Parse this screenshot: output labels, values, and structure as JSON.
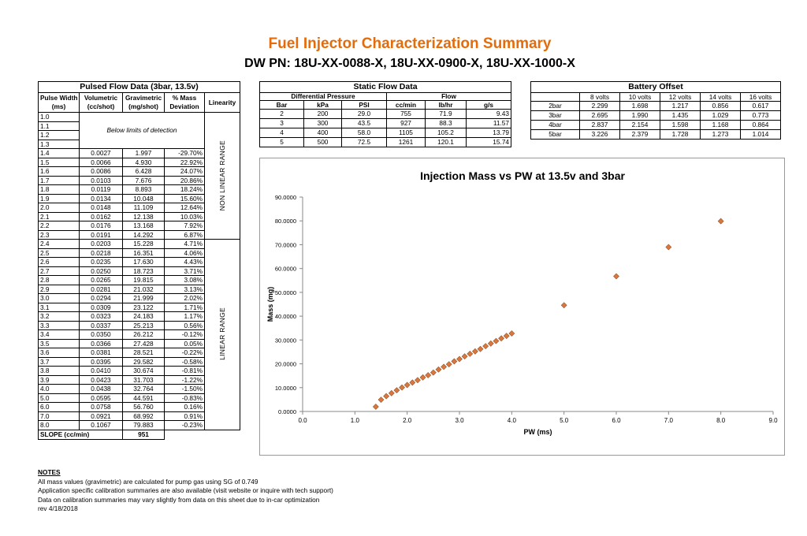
{
  "header": {
    "title": "Fuel Injector Characterization Summary",
    "subtitle": "DW PN: 18U-XX-0088-X, 18U-XX-0900-X, 18U-XX-1000-X"
  },
  "pulsed_table": {
    "title": "Pulsed Flow Data (3bar, 13.5v)",
    "columns": [
      [
        "Pulse Width",
        "(ms)"
      ],
      [
        "Volumetric",
        "(cc/shot)"
      ],
      [
        "Gravimetric",
        "(mg/shot)"
      ],
      [
        "% Mass",
        "Deviation"
      ],
      [
        "Linearity"
      ]
    ],
    "below_limit_note": "Below limits of detection",
    "nonlinear_label": "NON LINEAR RANGE",
    "linear_label": "LINEAR RANGE",
    "rows": [
      [
        "1.0"
      ],
      [
        "1.1"
      ],
      [
        "1.2"
      ],
      [
        "1.3"
      ],
      [
        "1.4",
        "0.0027",
        "1.997",
        "-29.70%"
      ],
      [
        "1.5",
        "0.0066",
        "4.930",
        "22.92%"
      ],
      [
        "1.6",
        "0.0086",
        "6.428",
        "24.07%"
      ],
      [
        "1.7",
        "0.0103",
        "7.676",
        "20.86%"
      ],
      [
        "1.8",
        "0.0119",
        "8.893",
        "18.24%"
      ],
      [
        "1.9",
        "0.0134",
        "10.048",
        "15.60%"
      ],
      [
        "2.0",
        "0.0148",
        "11.109",
        "12.64%"
      ],
      [
        "2.1",
        "0.0162",
        "12.138",
        "10.03%"
      ],
      [
        "2.2",
        "0.0176",
        "13.168",
        "7.92%"
      ],
      [
        "2.3",
        "0.0191",
        "14.292",
        "6.87%"
      ],
      [
        "2.4",
        "0.0203",
        "15.228",
        "4.71%"
      ],
      [
        "2.5",
        "0.0218",
        "16.351",
        "4.06%"
      ],
      [
        "2.6",
        "0.0235",
        "17.630",
        "4.43%"
      ],
      [
        "2.7",
        "0.0250",
        "18.723",
        "3.71%"
      ],
      [
        "2.8",
        "0.0265",
        "19.815",
        "3.08%"
      ],
      [
        "2.9",
        "0.0281",
        "21.032",
        "3.13%"
      ],
      [
        "3.0",
        "0.0294",
        "21.999",
        "2.02%"
      ],
      [
        "3.1",
        "0.0309",
        "23.122",
        "1.71%"
      ],
      [
        "3.2",
        "0.0323",
        "24.183",
        "1.17%"
      ],
      [
        "3.3",
        "0.0337",
        "25.213",
        "0.56%"
      ],
      [
        "3.4",
        "0.0350",
        "26.212",
        "-0.12%"
      ],
      [
        "3.5",
        "0.0366",
        "27.428",
        "0.05%"
      ],
      [
        "3.6",
        "0.0381",
        "28.521",
        "-0.22%"
      ],
      [
        "3.7",
        "0.0395",
        "29.582",
        "-0.58%"
      ],
      [
        "3.8",
        "0.0410",
        "30.674",
        "-0.81%"
      ],
      [
        "3.9",
        "0.0423",
        "31.703",
        "-1.22%"
      ],
      [
        "4.0",
        "0.0438",
        "32.764",
        "-1.50%"
      ],
      [
        "5.0",
        "0.0595",
        "44.591",
        "-0.83%"
      ],
      [
        "6.0",
        "0.0758",
        "56.760",
        "0.16%"
      ],
      [
        "7.0",
        "0.0921",
        "68.992",
        "0.91%"
      ],
      [
        "8.0",
        "0.1067",
        "79.883",
        "-0.23%"
      ]
    ],
    "slope_label": "SLOPE (cc/min)",
    "slope": "951"
  },
  "static_table": {
    "title": "Static Flow Data",
    "group_headers": [
      "Differential Pressure",
      "Flow"
    ],
    "columns": [
      "Bar",
      "kPa",
      "PSI",
      "cc/min",
      "lb/hr",
      "g/s"
    ],
    "rows": [
      [
        "2",
        "200",
        "29.0",
        "755",
        "71.9",
        "9.43"
      ],
      [
        "3",
        "300",
        "43.5",
        "927",
        "88.3",
        "11.57"
      ],
      [
        "4",
        "400",
        "58.0",
        "1105",
        "105.2",
        "13.79"
      ],
      [
        "5",
        "500",
        "72.5",
        "1261",
        "120.1",
        "15.74"
      ]
    ]
  },
  "battery_table": {
    "title": "Battery Offset",
    "columns": [
      "8 volts",
      "10 volts",
      "12 volts",
      "14 volts",
      "16 volts"
    ],
    "rows": [
      [
        "2bar",
        "2.299",
        "1.698",
        "1.217",
        "0.856",
        "0.617"
      ],
      [
        "3bar",
        "2.695",
        "1.990",
        "1.435",
        "1.029",
        "0.773"
      ],
      [
        "4bar",
        "2.837",
        "2.154",
        "1.598",
        "1.168",
        "0.864"
      ],
      [
        "5bar",
        "3.226",
        "2.379",
        "1.728",
        "1.273",
        "1.014"
      ]
    ]
  },
  "notes": {
    "title": "NOTES",
    "lines": [
      "All mass values (gravimetric) are calculated for pump gas using SG of 0.749",
      "Application specific calibration summaries are also available (visit website or inquire with tech support)",
      "Data on calibration summaries may vary slightly from data on this sheet due to in-car optimization",
      "rev 4/18/2018"
    ]
  },
  "chart_data": {
    "type": "scatter",
    "title": "Injection Mass vs PW at 13.5v and 3bar",
    "x_label": "PW (ms)",
    "y_label": "Mass (mg)",
    "color": "#d9773e",
    "x": [
      1.4,
      1.5,
      1.6,
      1.7,
      1.8,
      1.9,
      2.0,
      2.1,
      2.2,
      2.3,
      2.4,
      2.5,
      2.6,
      2.7,
      2.8,
      2.9,
      3.0,
      3.1,
      3.2,
      3.3,
      3.4,
      3.5,
      3.6,
      3.7,
      3.8,
      3.9,
      4.0,
      5.0,
      6.0,
      7.0,
      8.0
    ],
    "values": [
      1.997,
      4.93,
      6.428,
      7.676,
      8.893,
      10.048,
      11.109,
      12.138,
      13.168,
      14.292,
      15.228,
      16.351,
      17.63,
      18.723,
      19.815,
      21.032,
      21.999,
      23.122,
      24.183,
      25.213,
      26.212,
      27.428,
      28.521,
      29.582,
      30.674,
      31.703,
      32.764,
      44.591,
      56.76,
      68.992,
      79.883
    ],
    "xlim": [
      0,
      9
    ],
    "ylim": [
      0,
      90
    ],
    "xticks": [
      {
        "value": 0,
        "label": "0.0"
      },
      {
        "value": 1,
        "label": "1.0"
      },
      {
        "value": 2,
        "label": "2.0"
      },
      {
        "value": 3,
        "label": "3.0"
      },
      {
        "value": 4,
        "label": "4.0"
      },
      {
        "value": 5,
        "label": "5.0"
      },
      {
        "value": 6,
        "label": "6.0"
      },
      {
        "value": 7,
        "label": "7.0"
      },
      {
        "value": 8,
        "label": "8.0"
      },
      {
        "value": 9,
        "label": "9.0"
      }
    ],
    "yticks": [
      {
        "value": 0,
        "label": "0.0000"
      },
      {
        "value": 10,
        "label": "10.0000"
      },
      {
        "value": 20,
        "label": "20.0000"
      },
      {
        "value": 30,
        "label": "30.0000"
      },
      {
        "value": 40,
        "label": "40.0000"
      },
      {
        "value": 50,
        "label": "50.0000"
      },
      {
        "value": 60,
        "label": "60.0000"
      },
      {
        "value": 70,
        "label": "70.0000"
      },
      {
        "value": 80,
        "label": "80.0000"
      },
      {
        "value": 90,
        "label": "90.0000"
      }
    ]
  }
}
